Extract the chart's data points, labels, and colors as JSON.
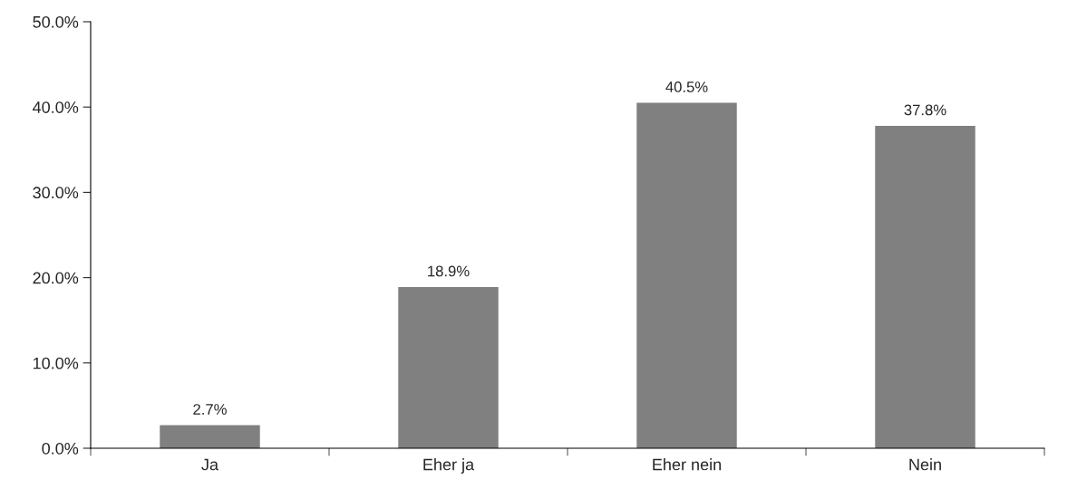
{
  "chart_data": {
    "type": "bar",
    "categories": [
      "Ja",
      "Eher ja",
      "Eher nein",
      "Nein"
    ],
    "values": [
      2.7,
      18.9,
      40.5,
      37.8
    ],
    "value_labels": [
      "2.7%",
      "18.9%",
      "40.5%",
      "37.8%"
    ],
    "color": "#808080",
    "ylim": [
      0,
      50
    ],
    "yticks": [
      {
        "value": 0,
        "label": "0.0%"
      },
      {
        "value": 10,
        "label": "10.0%"
      },
      {
        "value": 20,
        "label": "20.0%"
      },
      {
        "value": 30,
        "label": "30.0%"
      },
      {
        "value": 40,
        "label": "40.0%"
      },
      {
        "value": 50,
        "label": "50.0%"
      }
    ],
    "grid": false,
    "legend": false
  }
}
